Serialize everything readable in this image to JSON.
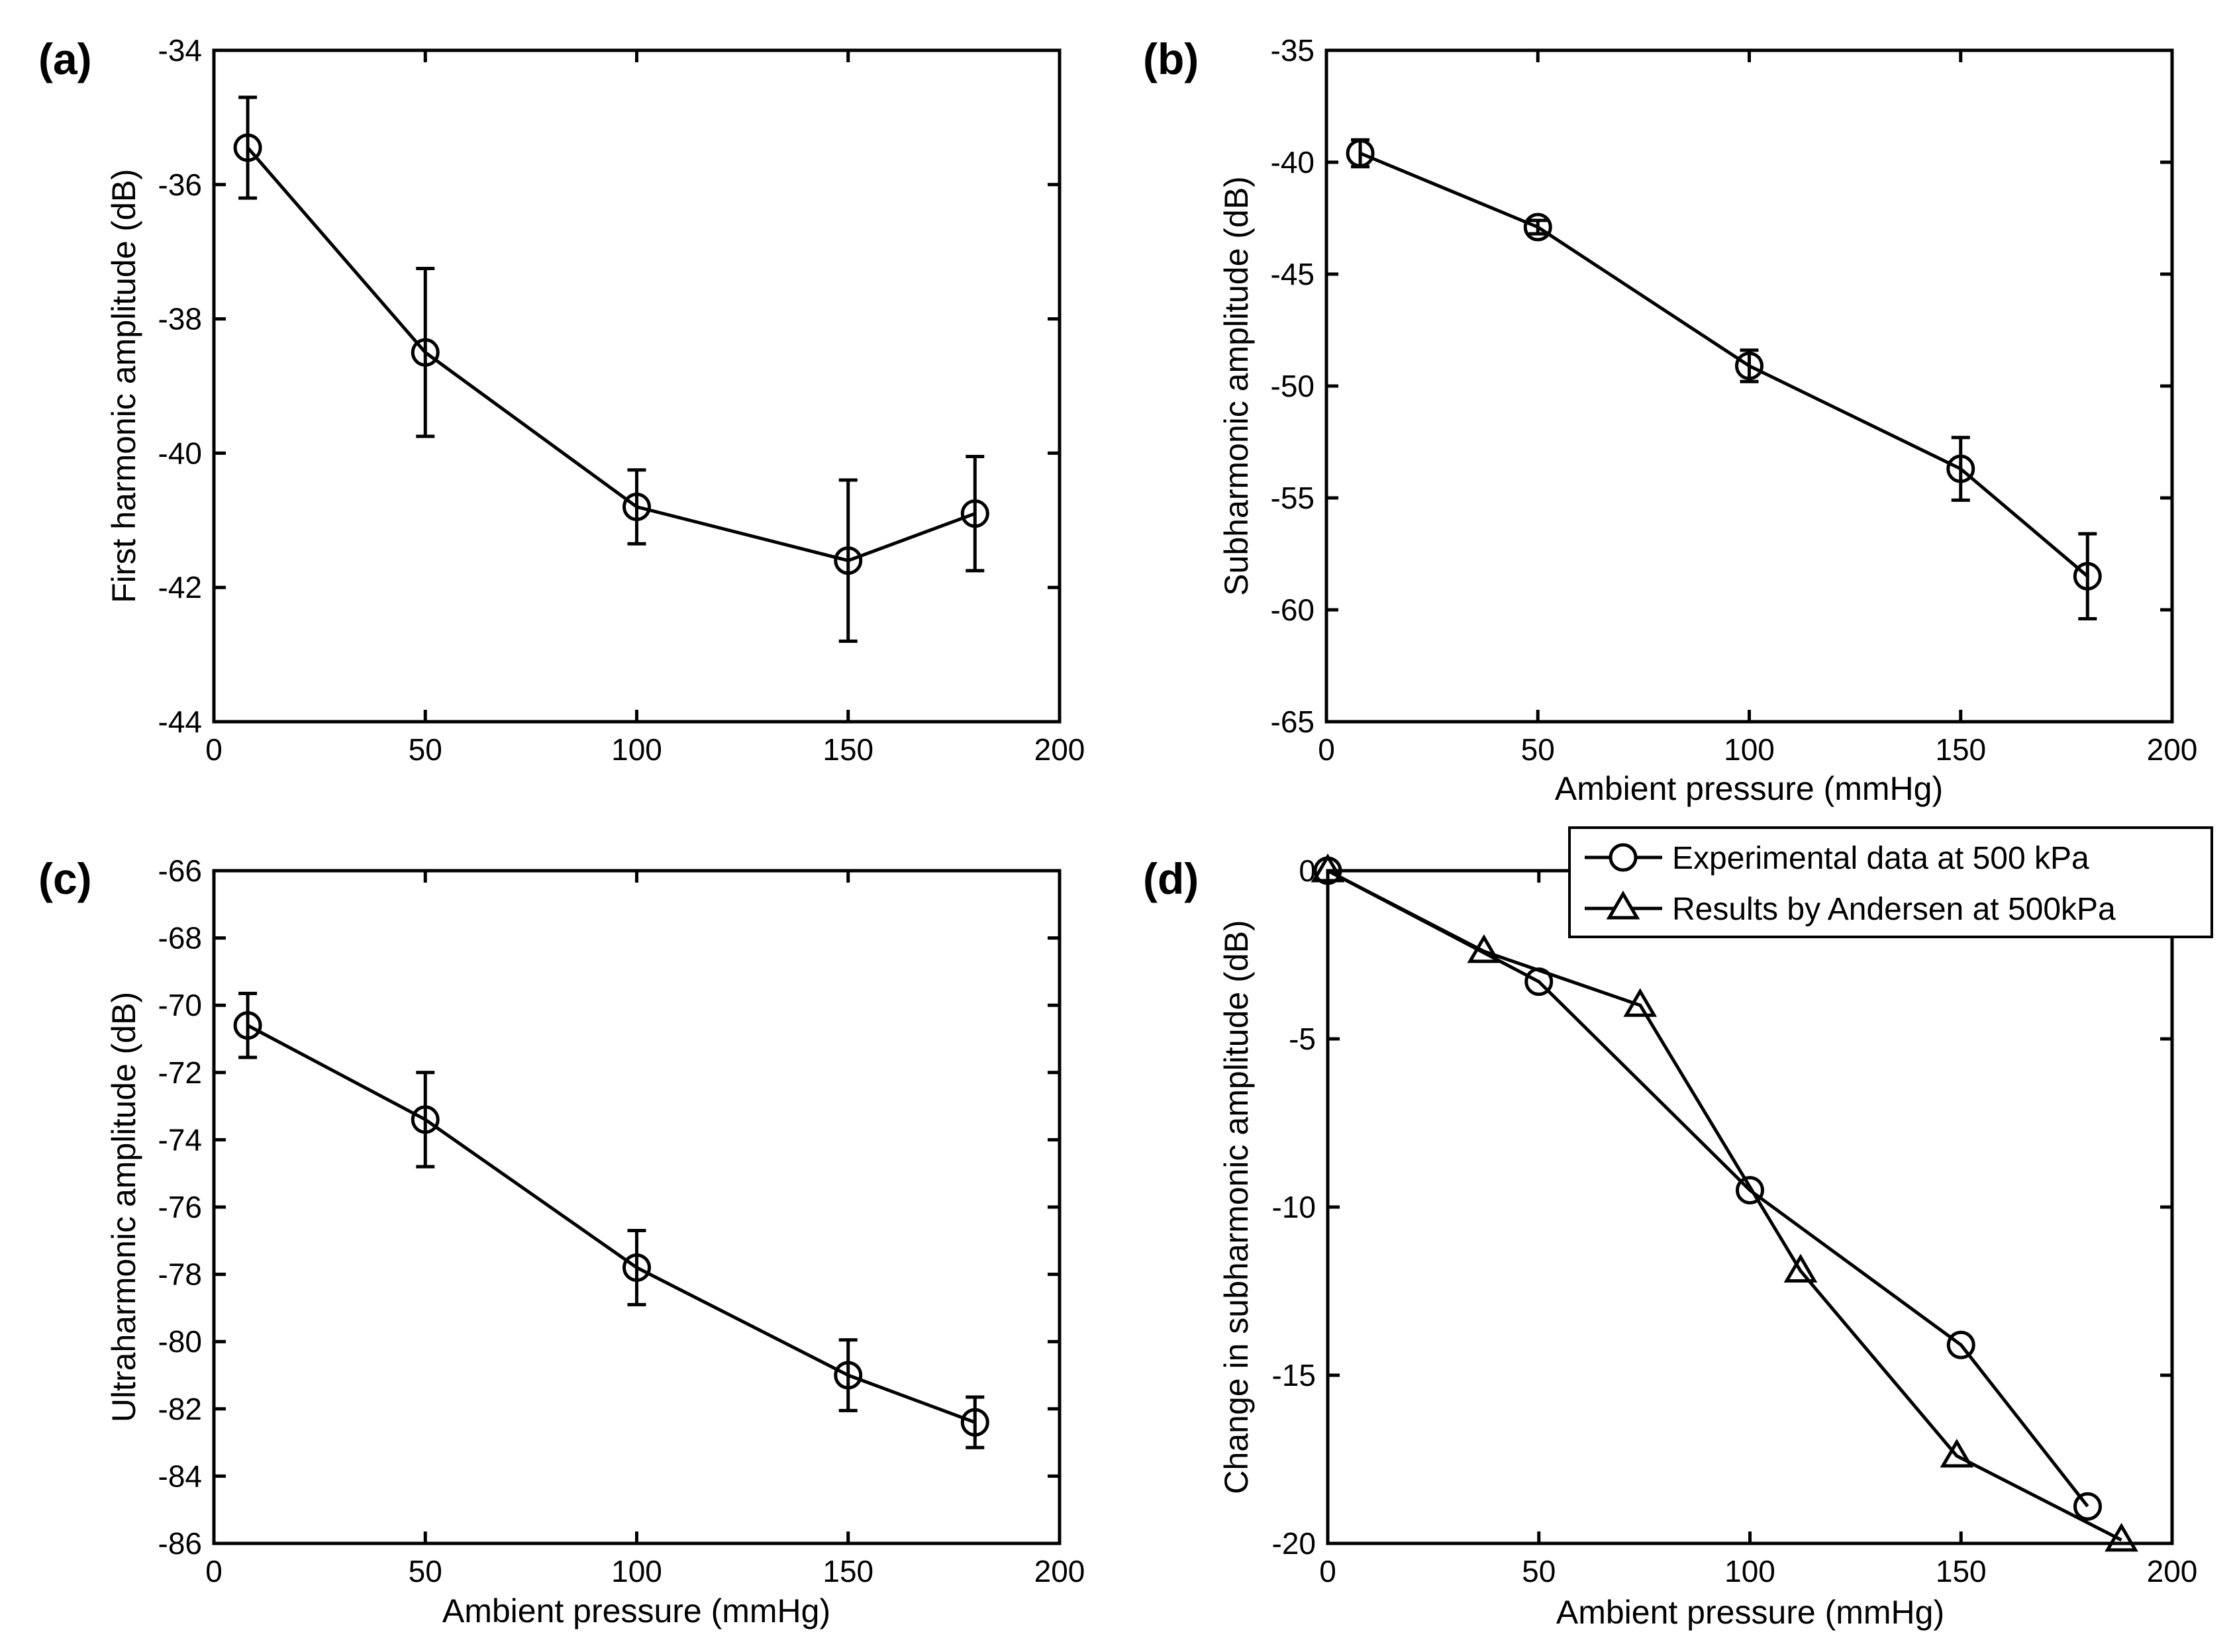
{
  "chart_data": [
    {
      "panel": "(a)",
      "type": "line",
      "xlabel": "",
      "ylabel": "First harmonic amplitude (dB)",
      "xlim": [
        0,
        200
      ],
      "ylim": [
        -44,
        -34
      ],
      "xticks": [
        0,
        50,
        100,
        150,
        200
      ],
      "yticks": [
        -34,
        -36,
        -38,
        -40,
        -42,
        -44
      ],
      "grid": false,
      "series": [
        {
          "name": "First harmonic",
          "marker": "circle",
          "x": [
            8,
            50,
            100,
            150,
            180
          ],
          "y": [
            -35.45,
            -38.5,
            -40.8,
            -41.6,
            -40.9
          ],
          "err": [
            0.75,
            1.25,
            0.55,
            1.2,
            0.85
          ]
        }
      ]
    },
    {
      "panel": "(b)",
      "type": "line",
      "xlabel": "Ambient pressure (mmHg)",
      "ylabel": "Subharmonic amplitude (dB)",
      "xlim": [
        0,
        200
      ],
      "ylim": [
        -65,
        -35
      ],
      "xticks": [
        0,
        50,
        100,
        150,
        200
      ],
      "yticks": [
        -35,
        -40,
        -45,
        -50,
        -55,
        -60,
        -65
      ],
      "grid": false,
      "series": [
        {
          "name": "Subharmonic",
          "marker": "circle",
          "x": [
            8,
            50,
            100,
            150,
            180
          ],
          "y": [
            -39.6,
            -42.9,
            -49.1,
            -53.7,
            -58.5
          ],
          "err": [
            0.6,
            0.3,
            0.7,
            1.4,
            1.9
          ]
        }
      ]
    },
    {
      "panel": "(c)",
      "type": "line",
      "xlabel": "Ambient pressure (mmHg)",
      "ylabel": "Ultraharmonic amplitude (dB)",
      "xlim": [
        0,
        200
      ],
      "ylim": [
        -86,
        -66
      ],
      "xticks": [
        0,
        50,
        100,
        150,
        200
      ],
      "yticks": [
        -66,
        -68,
        -70,
        -72,
        -74,
        -76,
        -78,
        -80,
        -82,
        -84,
        -86
      ],
      "grid": false,
      "series": [
        {
          "name": "Ultraharmonic",
          "marker": "circle",
          "x": [
            8,
            50,
            100,
            150,
            180
          ],
          "y": [
            -70.6,
            -73.4,
            -77.8,
            -81.0,
            -82.4
          ],
          "err": [
            0.95,
            1.4,
            1.1,
            1.05,
            0.75
          ]
        }
      ]
    },
    {
      "panel": "(d)",
      "type": "line",
      "xlabel": "Ambient pressure (mmHg)",
      "ylabel": "Change in subharmonic amplitude (dB)",
      "xlim": [
        0,
        200
      ],
      "ylim": [
        -20,
        0
      ],
      "xticks": [
        0,
        50,
        100,
        150,
        200
      ],
      "yticks": [
        0,
        -5,
        -10,
        -15,
        -20
      ],
      "grid": false,
      "legend": "top-right",
      "series": [
        {
          "name": "Experimental data at 500 kPa",
          "marker": "circle",
          "x": [
            0,
            50,
            100,
            150,
            180
          ],
          "y": [
            0,
            -3.3,
            -9.5,
            -14.1,
            -18.9
          ]
        },
        {
          "name": "Results by Andersen at 500kPa",
          "marker": "triangle",
          "x": [
            0,
            37,
            74,
            112,
            149,
            188
          ],
          "y": [
            0,
            -2.4,
            -4.0,
            -11.9,
            -17.4,
            -19.9
          ]
        }
      ]
    }
  ]
}
